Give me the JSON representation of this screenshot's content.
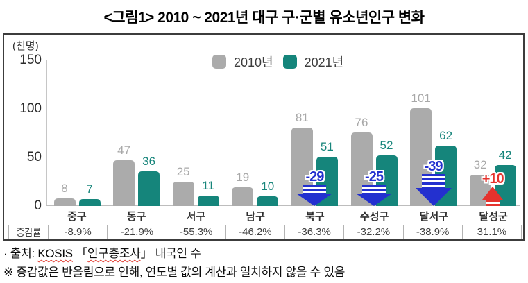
{
  "title": "<그림1> 2010 ~ 2021년 대구 구·군별 유소년인구 변화",
  "chart_data": {
    "type": "bar",
    "title": "<그림1> 2010 ~ 2021년 대구 구·군별 유소년인구 변화",
    "unit_label": "(천명)",
    "categories": [
      "중구",
      "동구",
      "서구",
      "남구",
      "북구",
      "수성구",
      "달서구",
      "달성군"
    ],
    "series": [
      {
        "name": "2010년",
        "color": "#ababab",
        "values": [
          8,
          47,
          25,
          19,
          81,
          76,
          101,
          32
        ]
      },
      {
        "name": "2021년",
        "color": "#15857b",
        "values": [
          7,
          36,
          11,
          10,
          51,
          52,
          62,
          42
        ]
      }
    ],
    "ylim": [
      0,
      150
    ],
    "yticks": [
      0,
      50,
      100,
      150
    ],
    "grid": false,
    "legend_position": "top-center",
    "annotations": [
      {
        "category": "북구",
        "label": "-29",
        "direction": "down",
        "color": "#2330cf"
      },
      {
        "category": "수성구",
        "label": "-25",
        "direction": "down",
        "color": "#2330cf"
      },
      {
        "category": "달서구",
        "label": "-39",
        "direction": "down",
        "color": "#2330cf"
      },
      {
        "category": "달성군",
        "label": "+10",
        "direction": "up",
        "color": "#e5322d"
      }
    ],
    "table": {
      "row_header": "증감률",
      "values": [
        "-8.9%",
        "-21.9%",
        "-55.3%",
        "-46.2%",
        "-36.3%",
        "-32.2%",
        "-38.9%",
        "31.1%"
      ]
    }
  },
  "footer": {
    "source_prefix": "· 출처: ",
    "source_kosis": "KOSIS",
    "source_mid": " 「",
    "source_survey": "인구총조사",
    "source_suffix": "」  내국인 수",
    "note_line": "※ 증감값은 반올림으로 인해, 연도별 값의 계산과 일치하지 않을 수 있음"
  }
}
